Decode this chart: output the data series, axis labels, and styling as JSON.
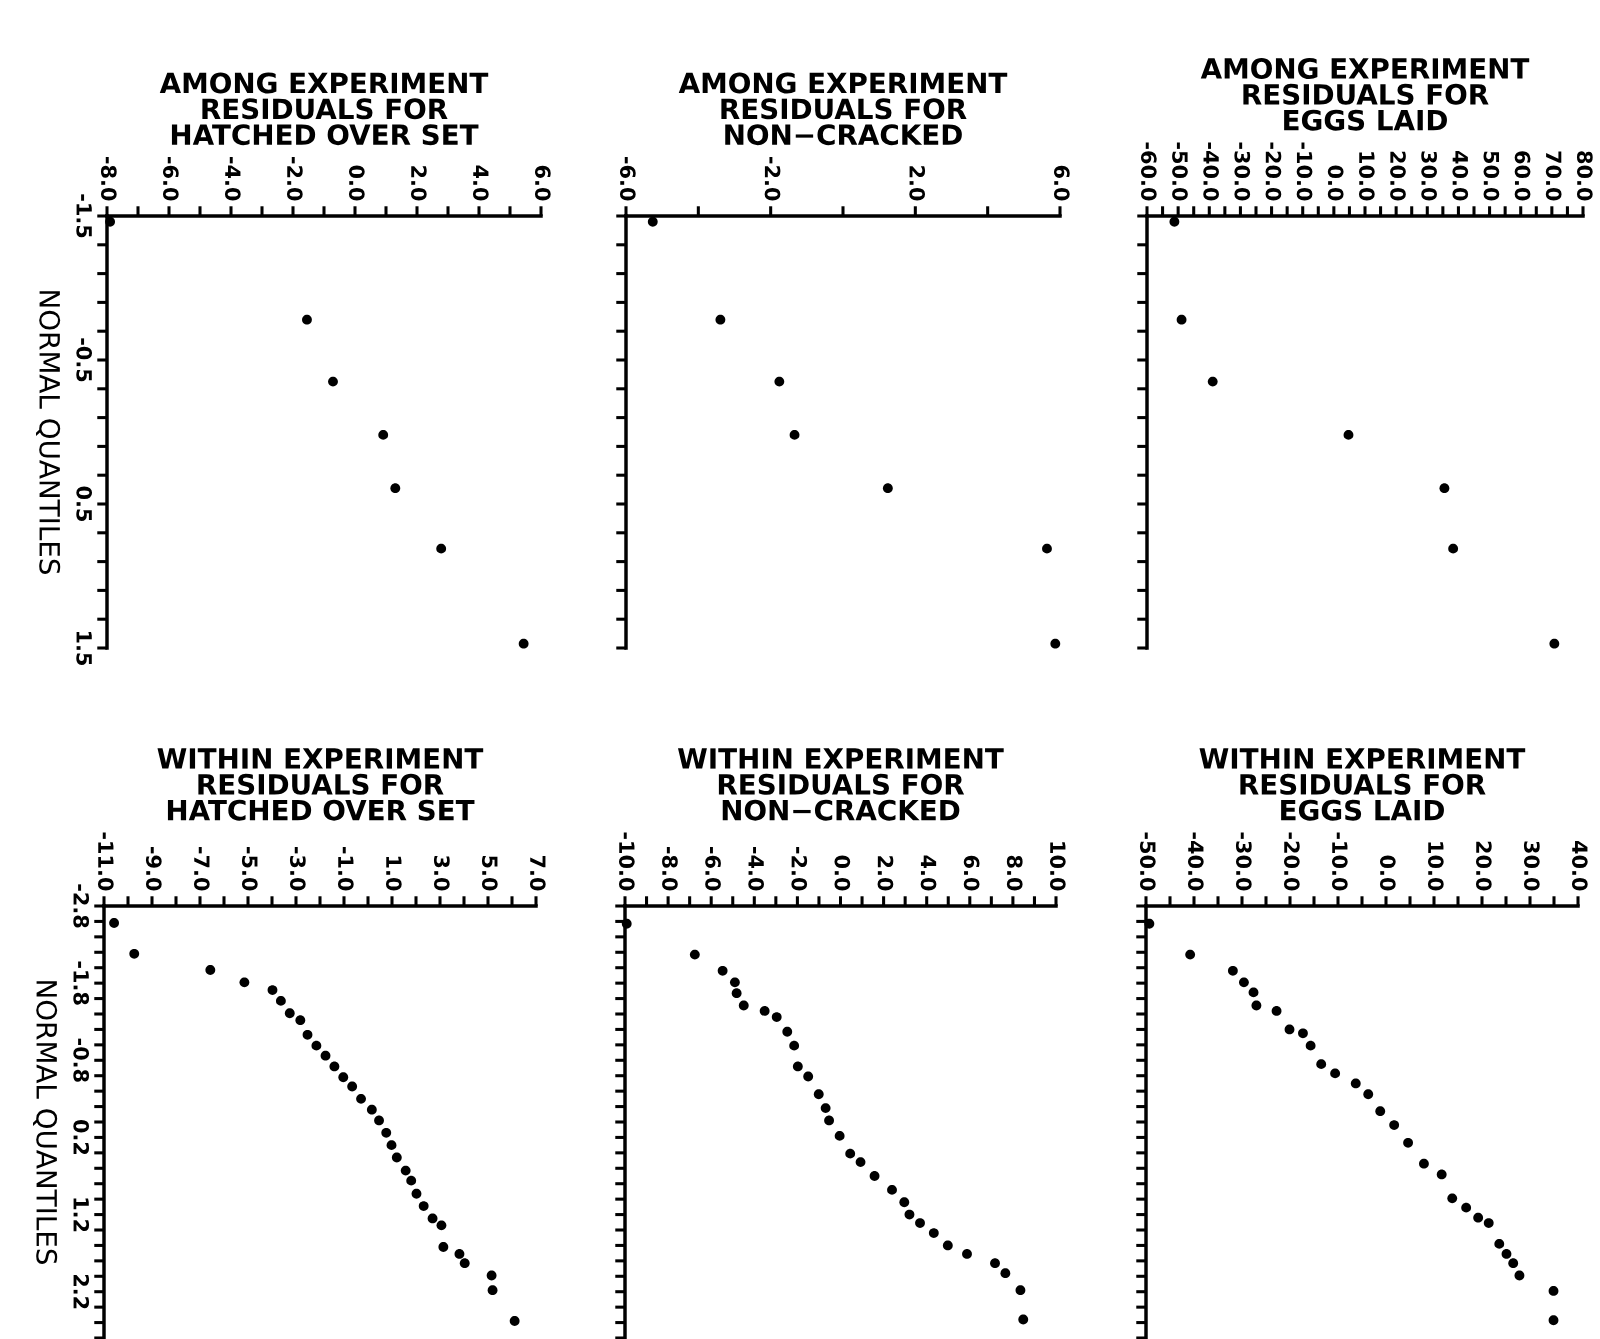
{
  "chart_data": [
    {
      "type": "scatter",
      "title": "AMONG EXPERIMENT\nRESIDUALS FOR\nHATCHED OVER SET",
      "ylabel": "NORMAL QUANTILES",
      "color": "#000000",
      "marker": "circle",
      "x": [
        -7.9,
        -1.55,
        -0.71,
        0.91,
        1.3,
        2.78,
        5.44
      ],
      "values": [
        -1.46,
        -0.78,
        -0.35,
        0.02,
        0.39,
        0.81,
        1.47
      ],
      "xlim": [
        -8,
        6
      ],
      "ylim": [
        1.5,
        -1.5
      ],
      "xticks": [
        {
          "value": -8,
          "label": "-8.0"
        },
        {
          "value": -7,
          "label": null
        },
        {
          "value": -6,
          "label": "-6.0"
        },
        {
          "value": -5,
          "label": null
        },
        {
          "value": -4,
          "label": "-4.0"
        },
        {
          "value": -3,
          "label": null
        },
        {
          "value": -2,
          "label": "-2.0"
        },
        {
          "value": -1,
          "label": null
        },
        {
          "value": 0,
          "label": "0.0"
        },
        {
          "value": 1,
          "label": null
        },
        {
          "value": 2,
          "label": "2.0"
        },
        {
          "value": 3,
          "label": null
        },
        {
          "value": 4,
          "label": "4.0"
        },
        {
          "value": 5,
          "label": null
        },
        {
          "value": 6,
          "label": "6.0"
        }
      ],
      "yticks": [
        -1.5,
        {
          "value": -1.3,
          "label": null
        },
        {
          "value": -1.1,
          "label": null
        },
        {
          "value": -0.9,
          "label": null
        },
        {
          "value": -0.7,
          "label": null
        },
        -0.5,
        {
          "value": -0.3,
          "label": null
        },
        {
          "value": -0.1,
          "label": null
        },
        {
          "value": 0.1,
          "label": null
        },
        {
          "value": 0.3,
          "label": null
        },
        0.5,
        {
          "value": 0.7,
          "label": null
        },
        {
          "value": 0.9,
          "label": null
        },
        {
          "value": 1.1,
          "label": null
        },
        {
          "value": 1.3,
          "label": null
        },
        1.5
      ]
    },
    {
      "type": "scatter",
      "title": "AMONG EXPERIMENT\nRESIDUALS FOR\nNON−CRACKED",
      "color": "#000000",
      "marker": "circle",
      "tick_labels": "x",
      "x": [
        -5.26,
        -3.39,
        -1.76,
        -1.34,
        1.24,
        5.64,
        5.87
      ],
      "values": [
        -1.46,
        -0.78,
        -0.35,
        0.02,
        0.39,
        0.81,
        1.47
      ],
      "xlim": [
        -6,
        6
      ],
      "ylim": [
        1.5,
        -1.5
      ],
      "xticks": [
        {
          "value": -6,
          "label": "-6.0"
        },
        {
          "value": -4,
          "label": null
        },
        {
          "value": -2,
          "label": "-2.0"
        },
        {
          "value": 0,
          "label": null
        },
        {
          "value": 2,
          "label": "2.0"
        },
        {
          "value": 4,
          "label": null
        },
        {
          "value": 6,
          "label": "6.0"
        }
      ],
      "yticks": [
        -1.5,
        -1.3,
        -1.1,
        -0.9,
        -0.7,
        -0.5,
        -0.3,
        -0.1,
        0.1,
        0.3,
        0.5,
        0.7,
        0.9,
        1.1,
        1.3,
        1.5
      ]
    },
    {
      "type": "scatter",
      "title": "AMONG EXPERIMENT\nRESIDUALS FOR\nEGGS LAID",
      "color": "#000000",
      "marker": "circle",
      "tick_labels": "x",
      "x": [
        -51.2,
        -48.9,
        -38.9,
        4.7,
        35.5,
        38.3,
        70.8
      ],
      "values": [
        -1.46,
        -0.78,
        -0.35,
        0.02,
        0.39,
        0.81,
        1.47
      ],
      "xlim": [
        -60,
        80
      ],
      "ylim": [
        1.5,
        -1.5
      ],
      "xticks": [
        {
          "value": -60,
          "label": "-60.0"
        },
        {
          "value": -55,
          "label": null
        },
        {
          "value": -50,
          "label": "-50.0"
        },
        {
          "value": -45,
          "label": null
        },
        {
          "value": -40,
          "label": "-40.0"
        },
        {
          "value": -35,
          "label": null
        },
        {
          "value": -30,
          "label": "-30.0"
        },
        {
          "value": -25,
          "label": null
        },
        {
          "value": -20,
          "label": "-20.0"
        },
        {
          "value": -15,
          "label": null
        },
        {
          "value": -10,
          "label": "-10.0"
        },
        {
          "value": -5,
          "label": null
        },
        {
          "value": 0,
          "label": "0.0"
        },
        {
          "value": 5,
          "label": null
        },
        {
          "value": 10,
          "label": "10.0"
        },
        {
          "value": 15,
          "label": null
        },
        {
          "value": 20,
          "label": "20.0"
        },
        {
          "value": 25,
          "label": null
        },
        {
          "value": 30,
          "label": "30.0"
        },
        {
          "value": 35,
          "label": null
        },
        {
          "value": 40,
          "label": "40.0"
        },
        {
          "value": 45,
          "label": null
        },
        {
          "value": 50,
          "label": "50.0"
        },
        {
          "value": 55,
          "label": null
        },
        {
          "value": 60,
          "label": "60.0"
        },
        {
          "value": 65,
          "label": null
        },
        {
          "value": 70,
          "label": "70.0"
        },
        {
          "value": 75,
          "label": null
        },
        {
          "value": 80,
          "label": "80.0"
        }
      ],
      "yticks": [
        -1.5,
        -1.3,
        -1.1,
        -0.9,
        -0.7,
        -0.5,
        -0.3,
        -0.1,
        0.1,
        0.3,
        0.5,
        0.7,
        0.9,
        1.1,
        1.3,
        1.5
      ]
    },
    {
      "type": "scatter",
      "title": "WITHIN EXPERIMENT\nRESIDUALS FOR\nHATCHED OVER SET",
      "ylabel": "NORMAL QUANTILES",
      "color": "#000000",
      "marker": "circle",
      "x": [
        -10.58,
        -9.74,
        -6.57,
        -5.15,
        -3.98,
        -3.63,
        -3.26,
        -2.82,
        -2.52,
        -2.15,
        -1.77,
        -1.4,
        -1.03,
        -0.66,
        -0.29,
        0.16,
        0.46,
        0.76,
        0.98,
        1.2,
        1.57,
        1.8,
        2.02,
        2.32,
        2.69,
        3.06,
        3.14,
        3.81,
        4.03,
        5.15,
        5.19,
        6.11
      ],
      "values": [
        -2.58,
        -2.18,
        -1.97,
        -1.81,
        -1.71,
        -1.57,
        -1.41,
        -1.32,
        -1.13,
        -0.99,
        -0.86,
        -0.72,
        -0.58,
        -0.46,
        -0.3,
        -0.16,
        -0.02,
        0.14,
        0.3,
        0.46,
        0.63,
        0.76,
        0.93,
        1.09,
        1.25,
        1.34,
        1.62,
        1.71,
        1.83,
        1.99,
        2.18,
        2.58
      ],
      "xlim": [
        -11,
        7
      ],
      "ylim": [
        2.8,
        -2.8
      ],
      "xticks": [
        {
          "value": -11,
          "label": "-11.0"
        },
        {
          "value": -10,
          "label": null
        },
        {
          "value": -9,
          "label": "-9.0"
        },
        {
          "value": -8,
          "label": null
        },
        {
          "value": -7,
          "label": "-7.0"
        },
        {
          "value": -6,
          "label": null
        },
        {
          "value": -5,
          "label": "-5.0"
        },
        {
          "value": -4,
          "label": null
        },
        {
          "value": -3,
          "label": "-3.0"
        },
        {
          "value": -2,
          "label": null
        },
        {
          "value": -1,
          "label": "-1.0"
        },
        {
          "value": 0,
          "label": null
        },
        {
          "value": 1,
          "label": "1.0"
        },
        {
          "value": 2,
          "label": null
        },
        {
          "value": 3,
          "label": "3.0"
        },
        {
          "value": 4,
          "label": null
        },
        {
          "value": 5,
          "label": "5.0"
        },
        {
          "value": 6,
          "label": null
        },
        {
          "value": 7,
          "label": "7.0"
        }
      ],
      "yticks": [
        -2.8,
        {
          "value": -2.6,
          "label": null
        },
        {
          "value": -2.4,
          "label": null
        },
        {
          "value": -2.2,
          "label": null
        },
        {
          "value": -2.0,
          "label": null
        },
        -1.8,
        {
          "value": -1.6,
          "label": null
        },
        {
          "value": -1.4,
          "label": null
        },
        {
          "value": -1.2,
          "label": null
        },
        {
          "value": -1.0,
          "label": null
        },
        -0.8,
        {
          "value": -0.6,
          "label": null
        },
        {
          "value": -0.4,
          "label": null
        },
        {
          "value": -0.2,
          "label": null
        },
        {
          "value": 0.0,
          "label": null
        },
        0.2,
        {
          "value": 0.4,
          "label": null
        },
        {
          "value": 0.6,
          "label": null
        },
        {
          "value": 0.8,
          "label": null
        },
        {
          "value": 1.0,
          "label": null
        },
        1.2,
        {
          "value": 1.4,
          "label": null
        },
        {
          "value": 1.6,
          "label": null
        },
        {
          "value": 1.8,
          "label": null
        },
        {
          "value": 2.0,
          "label": null
        },
        2.2,
        {
          "value": 2.4,
          "label": null
        },
        {
          "value": 2.6,
          "label": null
        },
        {
          "value": 2.8,
          "label": null
        }
      ]
    },
    {
      "type": "scatter",
      "title": "WITHIN EXPERIMENT\nRESIDUALS FOR\nNON−CRACKED",
      "color": "#000000",
      "marker": "circle",
      "tick_labels": "x",
      "x": [
        -9.92,
        -6.76,
        -5.47,
        -4.9,
        -4.82,
        -4.49,
        -3.52,
        -2.96,
        -2.47,
        -2.15,
        -1.98,
        -1.5,
        -1.01,
        -0.69,
        -0.53,
        -0.04,
        0.45,
        0.93,
        1.58,
        2.39,
        2.96,
        3.2,
        3.69,
        4.33,
        4.98,
        5.87,
        7.17,
        7.65,
        8.35,
        8.48
      ],
      "values": [
        -2.57,
        -2.17,
        -1.96,
        -1.81,
        -1.67,
        -1.51,
        -1.44,
        -1.36,
        -1.17,
        -0.99,
        -0.72,
        -0.59,
        -0.36,
        -0.18,
        -0.02,
        0.18,
        0.41,
        0.52,
        0.7,
        0.88,
        1.04,
        1.2,
        1.31,
        1.44,
        1.6,
        1.71,
        1.83,
        1.96,
        2.18,
        2.56
      ],
      "xlim": [
        -10,
        10
      ],
      "ylim": [
        2.8,
        -2.8
      ],
      "xticks": [
        {
          "value": -10,
          "label": "-10.0"
        },
        {
          "value": -9,
          "label": null
        },
        {
          "value": -8,
          "label": "-8.0"
        },
        {
          "value": -7,
          "label": null
        },
        {
          "value": -6,
          "label": "-6.0"
        },
        {
          "value": -5,
          "label": null
        },
        {
          "value": -4,
          "label": "-4.0"
        },
        {
          "value": -3,
          "label": null
        },
        {
          "value": -2,
          "label": "-2.0"
        },
        {
          "value": -1,
          "label": null
        },
        {
          "value": 0,
          "label": "0.0"
        },
        {
          "value": 1,
          "label": null
        },
        {
          "value": 2,
          "label": "2.0"
        },
        {
          "value": 3,
          "label": null
        },
        {
          "value": 4,
          "label": "4.0"
        },
        {
          "value": 5,
          "label": null
        },
        {
          "value": 6,
          "label": "6.0"
        },
        {
          "value": 7,
          "label": null
        },
        {
          "value": 8,
          "label": "8.0"
        },
        {
          "value": 9,
          "label": null
        },
        {
          "value": 10,
          "label": "10.0"
        }
      ],
      "yticks": [
        -2.8,
        -2.6,
        -2.4,
        -2.2,
        -2.0,
        -1.8,
        -1.6,
        -1.4,
        -1.2,
        -1.0,
        -0.8,
        -0.6,
        -0.4,
        -0.2,
        0.0,
        0.2,
        0.4,
        0.6,
        0.8,
        1.0,
        1.2,
        1.4,
        1.6,
        1.8,
        2.0,
        2.2,
        2.4,
        2.6,
        2.8
      ]
    },
    {
      "type": "scatter",
      "title": "WITHIN EXPERIMENT\nRESIDUALS FOR\nEGGS LAID",
      "color": "#000000",
      "marker": "circle",
      "tick_labels": "x",
      "x": [
        -49.3,
        -40.8,
        -31.9,
        -29.6,
        -27.6,
        -27.0,
        -22.8,
        -20.1,
        -17.3,
        -15.7,
        -13.5,
        -10.6,
        -6.3,
        -3.7,
        -1.2,
        1.7,
        4.6,
        7.9,
        11.6,
        13.8,
        16.7,
        19.2,
        21.4,
        23.6,
        25.1,
        26.5,
        27.8,
        34.9,
        34.9
      ],
      "values": [
        -2.57,
        -2.17,
        -1.96,
        -1.81,
        -1.68,
        -1.51,
        -1.44,
        -1.2,
        -1.15,
        -0.99,
        -0.75,
        -0.63,
        -0.5,
        -0.36,
        -0.14,
        0.04,
        0.27,
        0.54,
        0.68,
        0.99,
        1.11,
        1.24,
        1.31,
        1.58,
        1.71,
        1.83,
        1.99,
        2.19,
        2.57
      ],
      "xlim": [
        -50,
        40
      ],
      "ylim": [
        2.8,
        -2.8
      ],
      "xticks": [
        {
          "value": -50,
          "label": "-50.0"
        },
        {
          "value": -45,
          "label": null
        },
        {
          "value": -40,
          "label": "-40.0"
        },
        {
          "value": -35,
          "label": null
        },
        {
          "value": -30,
          "label": "-30.0"
        },
        {
          "value": -25,
          "label": null
        },
        {
          "value": -20,
          "label": "-20.0"
        },
        {
          "value": -15,
          "label": null
        },
        {
          "value": -10,
          "label": "-10.0"
        },
        {
          "value": -5,
          "label": null
        },
        {
          "value": 0,
          "label": "0.0"
        },
        {
          "value": 5,
          "label": null
        },
        {
          "value": 10,
          "label": "10.0"
        },
        {
          "value": 15,
          "label": null
        },
        {
          "value": 20,
          "label": "20.0"
        },
        {
          "value": 25,
          "label": null
        },
        {
          "value": 30,
          "label": "30.0"
        },
        {
          "value": 35,
          "label": null
        },
        {
          "value": 40,
          "label": "40.0"
        }
      ],
      "yticks": [
        -2.8,
        -2.6,
        -2.4,
        -2.2,
        -2.0,
        -1.8,
        -1.6,
        -1.4,
        -1.2,
        -1.0,
        -0.8,
        -0.6,
        -0.4,
        -0.2,
        0.0,
        0.2,
        0.4,
        0.6,
        0.8,
        1.0,
        1.2,
        1.4,
        1.6,
        1.8,
        2.0,
        2.2,
        2.4,
        2.6,
        2.8
      ]
    }
  ]
}
